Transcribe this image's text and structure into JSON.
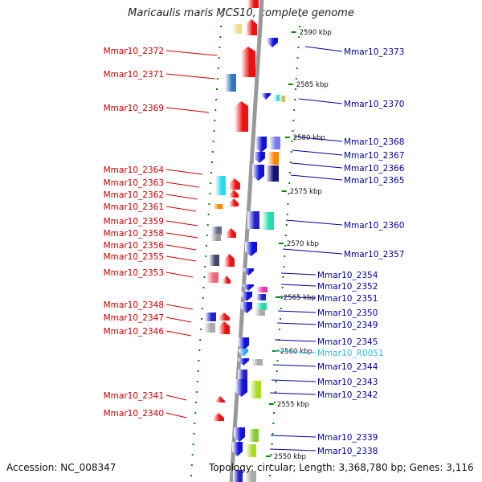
{
  "title": "Maricaulis maris MCS10, complete genome",
  "accession_label": "Accession: NC_008347",
  "topology_label": "Topology: circular; Length: 3,368,780 bp; Genes: 3,116",
  "colors": {
    "left_label": "#cc0000",
    "right_label": "#000099",
    "rna_label": "#33bbdd",
    "backbone": "#999999",
    "tick": "#008800"
  },
  "ticks": [
    "2590 kbp",
    "2585 kbp",
    "2580 kbp",
    "2575 kbp",
    "2570 kbp",
    "2565 kbp",
    "2560 kbp",
    "2555 kbp",
    "2550 kbp"
  ],
  "left_genes": [
    "Mmar10_2372",
    "Mmar10_2371",
    "Mmar10_2369",
    "Mmar10_2364",
    "Mmar10_2363",
    "Mmar10_2362",
    "Mmar10_2361",
    "Mmar10_2359",
    "Mmar10_2358",
    "Mmar10_2356",
    "Mmar10_2355",
    "Mmar10_2353",
    "Mmar10_2348",
    "Mmar10_2347",
    "Mmar10_2346",
    "Mmar10_2341",
    "Mmar10_2340"
  ],
  "right_genes": [
    "Mmar10_2373",
    "Mmar10_2370",
    "Mmar10_2368",
    "Mmar10_2367",
    "Mmar10_2366",
    "Mmar10_2365",
    "Mmar10_2360",
    "Mmar10_2357",
    "Mmar10_2354",
    "Mmar10_2352",
    "Mmar10_2351",
    "Mmar10_2350",
    "Mmar10_2349",
    "Mmar10_2345",
    "Mmar10_R0051",
    "Mmar10_2344",
    "Mmar10_2343",
    "Mmar10_2342",
    "Mmar10_2339",
    "Mmar10_2338"
  ]
}
